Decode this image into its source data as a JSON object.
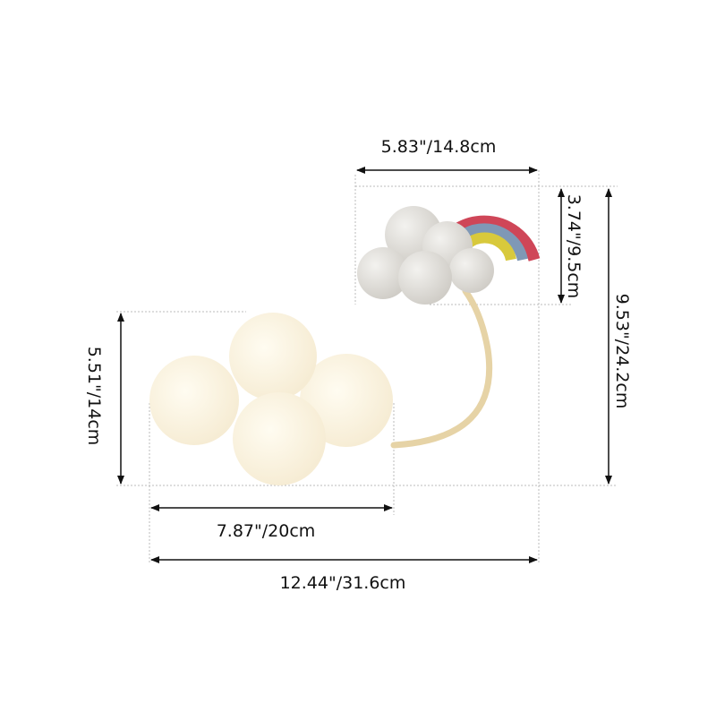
{
  "dimensions": {
    "top_width": "5.83\"/14.8cm",
    "small_cloud_height": "3.74\"/9.5cm",
    "total_height": "9.53\"/24.2cm",
    "big_cloud_height": "5.51\"/14cm",
    "big_cloud_width": "7.87\"/20cm",
    "total_width": "12.44\"/31.6cm"
  },
  "colors": {
    "big_cloud": "#fbf4e2",
    "small_cloud": "#e6e4df",
    "arm": "#e6d3a6",
    "rainbow_outer": "#cf4658",
    "rainbow_middle": "#7f98b6",
    "rainbow_inner": "#d8c93c",
    "dimension_line": "#111111",
    "guide_line": "#bbbbbb"
  }
}
